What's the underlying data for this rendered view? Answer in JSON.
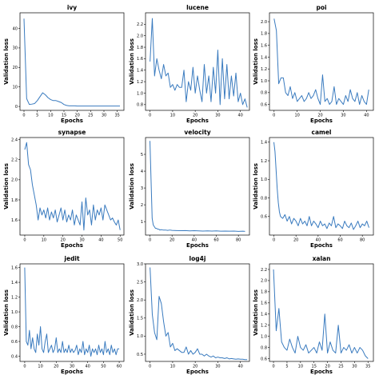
{
  "chart_data": [
    {
      "type": "line",
      "title": "ivy",
      "xlabel": "Epochs",
      "ylabel": "Validation loss",
      "xlim": [
        -1.5,
        37.5
      ],
      "ylim": [
        -2,
        48
      ],
      "xticks": [
        0,
        5,
        10,
        15,
        20,
        25,
        30,
        35
      ],
      "yticks": [
        0,
        10,
        20,
        30,
        40
      ],
      "x": [
        0,
        1,
        2,
        3,
        4,
        5,
        6,
        7,
        8,
        9,
        10,
        11,
        12,
        13,
        14,
        15,
        16,
        17,
        18,
        19,
        20,
        21,
        22,
        23,
        24,
        25,
        26,
        27,
        28,
        29,
        30,
        31,
        32,
        33,
        34,
        35,
        36
      ],
      "y": [
        45,
        4,
        1,
        1.2,
        1.5,
        3,
        5,
        7,
        6,
        4.5,
        3.5,
        3,
        3,
        2.5,
        2,
        1,
        0.5,
        0.3,
        0.3,
        0.3,
        0.2,
        0.2,
        0.2,
        0.2,
        0.2,
        0.2,
        0.2,
        0.2,
        0.2,
        0.2,
        0.2,
        0.2,
        0.2,
        0.2,
        0.2,
        0.2,
        0.2
      ]
    },
    {
      "type": "line",
      "title": "lucene",
      "xlabel": "Epochs",
      "ylabel": "Validation loss",
      "xlim": [
        -2,
        44
      ],
      "ylim": [
        0.7,
        2.4
      ],
      "xticks": [
        0,
        10,
        20,
        30,
        40
      ],
      "yticks": [
        0.8,
        1.0,
        1.2,
        1.4,
        1.6,
        1.8,
        2.0,
        2.2
      ],
      "x": [
        0,
        1,
        2,
        3,
        4,
        5,
        6,
        7,
        8,
        9,
        10,
        11,
        12,
        13,
        14,
        15,
        16,
        17,
        18,
        19,
        20,
        21,
        22,
        23,
        24,
        25,
        26,
        27,
        28,
        29,
        30,
        31,
        32,
        33,
        34,
        35,
        36,
        37,
        38,
        39,
        40,
        41,
        42,
        43
      ],
      "y": [
        1.55,
        2.3,
        1.3,
        1.6,
        1.4,
        1.25,
        1.5,
        1.3,
        1.35,
        1.1,
        1.15,
        1.05,
        1.15,
        1.1,
        1.1,
        1.4,
        0.85,
        1.2,
        1.05,
        1.45,
        1.0,
        1.3,
        1.05,
        0.85,
        1.5,
        1.0,
        1.3,
        0.85,
        1.45,
        1.0,
        1.75,
        0.8,
        1.6,
        0.9,
        1.5,
        0.9,
        1.3,
        0.95,
        1.35,
        0.85,
        1.0,
        0.8,
        0.9,
        0.75
      ]
    },
    {
      "type": "line",
      "title": "poi",
      "xlabel": "Epochs",
      "ylabel": "Validation loss",
      "xlim": [
        -2,
        43
      ],
      "ylim": [
        0.5,
        2.15
      ],
      "xticks": [
        0,
        10,
        20,
        30,
        40
      ],
      "yticks": [
        0.6,
        0.8,
        1.0,
        1.2,
        1.4,
        1.6,
        1.8,
        2.0
      ],
      "x": [
        0,
        1,
        2,
        3,
        4,
        5,
        6,
        7,
        8,
        9,
        10,
        11,
        12,
        13,
        14,
        15,
        16,
        17,
        18,
        19,
        20,
        21,
        22,
        23,
        24,
        25,
        26,
        27,
        28,
        29,
        30,
        31,
        32,
        33,
        34,
        35,
        36,
        37,
        38,
        39,
        40,
        41
      ],
      "y": [
        2.05,
        1.85,
        0.95,
        1.05,
        1.05,
        0.8,
        0.75,
        0.9,
        0.7,
        0.8,
        0.65,
        0.7,
        0.75,
        0.65,
        0.7,
        0.8,
        0.7,
        0.75,
        0.85,
        0.7,
        0.6,
        1.1,
        0.65,
        0.7,
        0.6,
        0.65,
        0.9,
        0.6,
        0.7,
        0.65,
        0.6,
        0.75,
        0.65,
        0.85,
        0.7,
        0.65,
        0.8,
        0.6,
        0.75,
        0.65,
        0.6,
        0.85
      ]
    },
    {
      "type": "line",
      "title": "synapse",
      "xlabel": "Epochs",
      "ylabel": "Validation loss",
      "xlim": [
        -2.5,
        52
      ],
      "ylim": [
        1.45,
        2.42
      ],
      "xticks": [
        0,
        10,
        20,
        30,
        40,
        50
      ],
      "yticks": [
        1.6,
        1.8,
        2.0,
        2.2,
        2.4
      ],
      "x": [
        0,
        1,
        2,
        3,
        4,
        5,
        6,
        7,
        8,
        9,
        10,
        11,
        12,
        13,
        14,
        15,
        16,
        17,
        18,
        19,
        20,
        21,
        22,
        23,
        24,
        25,
        26,
        27,
        28,
        29,
        30,
        31,
        32,
        33,
        34,
        35,
        36,
        37,
        38,
        39,
        40,
        41,
        42,
        43,
        44,
        45,
        46,
        47,
        48,
        49,
        50
      ],
      "y": [
        2.3,
        2.37,
        2.15,
        2.1,
        1.95,
        1.85,
        1.75,
        1.6,
        1.72,
        1.65,
        1.7,
        1.62,
        1.72,
        1.6,
        1.68,
        1.62,
        1.7,
        1.58,
        1.65,
        1.72,
        1.6,
        1.7,
        1.58,
        1.65,
        1.6,
        1.7,
        1.55,
        1.65,
        1.6,
        1.55,
        1.78,
        1.5,
        1.82,
        1.65,
        1.7,
        1.55,
        1.75,
        1.6,
        1.7,
        1.65,
        1.72,
        1.6,
        1.75,
        1.7,
        1.65,
        1.6,
        1.62,
        1.58,
        1.55,
        1.6,
        1.5
      ]
    },
    {
      "type": "line",
      "title": "velocity",
      "xlabel": "Epochs",
      "ylabel": "Validation loss",
      "xlim": [
        -4,
        90
      ],
      "ylim": [
        0.2,
        6.0
      ],
      "xticks": [
        0,
        20,
        40,
        60,
        80
      ],
      "yticks": [
        1,
        2,
        3,
        4,
        5
      ],
      "x": [
        0,
        1,
        2,
        3,
        4,
        5,
        6,
        7,
        8,
        9,
        10,
        12,
        14,
        16,
        18,
        20,
        24,
        28,
        32,
        36,
        40,
        44,
        48,
        52,
        56,
        60,
        64,
        68,
        72,
        76,
        80,
        84,
        86
      ],
      "y": [
        5.8,
        3.5,
        1.2,
        0.8,
        0.7,
        0.6,
        0.6,
        0.55,
        0.55,
        0.5,
        0.52,
        0.5,
        0.5,
        0.48,
        0.5,
        0.48,
        0.47,
        0.46,
        0.47,
        0.45,
        0.46,
        0.45,
        0.44,
        0.45,
        0.44,
        0.45,
        0.43,
        0.44,
        0.43,
        0.44,
        0.42,
        0.43,
        0.42
      ]
    },
    {
      "type": "line",
      "title": "camel",
      "xlabel": "Epochs",
      "ylabel": "Validation loss",
      "xlim": [
        -4,
        90
      ],
      "ylim": [
        0.4,
        1.45
      ],
      "xticks": [
        0,
        20,
        40,
        60,
        80
      ],
      "yticks": [
        0.6,
        0.8,
        1.0,
        1.2,
        1.4
      ],
      "x": [
        0,
        1,
        2,
        3,
        4,
        5,
        6,
        8,
        10,
        12,
        14,
        16,
        18,
        20,
        22,
        24,
        26,
        28,
        30,
        32,
        34,
        36,
        38,
        40,
        42,
        44,
        46,
        48,
        50,
        52,
        54,
        56,
        58,
        60,
        62,
        64,
        66,
        68,
        70,
        72,
        74,
        76,
        78,
        80,
        82,
        84,
        86
      ],
      "y": [
        1.4,
        1.3,
        1.1,
        0.9,
        0.75,
        0.65,
        0.6,
        0.58,
        0.62,
        0.55,
        0.6,
        0.52,
        0.58,
        0.55,
        0.5,
        0.58,
        0.52,
        0.55,
        0.5,
        0.6,
        0.5,
        0.55,
        0.52,
        0.48,
        0.55,
        0.5,
        0.52,
        0.47,
        0.53,
        0.5,
        0.6,
        0.48,
        0.52,
        0.5,
        0.47,
        0.55,
        0.5,
        0.48,
        0.53,
        0.46,
        0.5,
        0.55,
        0.48,
        0.52,
        0.5,
        0.55,
        0.48
      ]
    },
    {
      "type": "line",
      "title": "jedit",
      "xlabel": "Epochs",
      "ylabel": "Validation loss",
      "xlim": [
        -3,
        63
      ],
      "ylim": [
        0.33,
        1.65
      ],
      "xticks": [
        0,
        10,
        20,
        30,
        40,
        50,
        60
      ],
      "yticks": [
        0.4,
        0.6,
        0.8,
        1.0,
        1.2,
        1.4,
        1.6
      ],
      "x": [
        0,
        1,
        2,
        3,
        4,
        5,
        6,
        7,
        8,
        9,
        10,
        11,
        12,
        13,
        14,
        15,
        16,
        17,
        18,
        19,
        20,
        21,
        22,
        23,
        24,
        25,
        26,
        27,
        28,
        29,
        30,
        31,
        32,
        33,
        34,
        35,
        36,
        37,
        38,
        39,
        40,
        41,
        42,
        43,
        44,
        45,
        46,
        47,
        48,
        49,
        50,
        51,
        52,
        53,
        54,
        55,
        56,
        57,
        58,
        59,
        60
      ],
      "y": [
        1.6,
        0.6,
        0.55,
        0.75,
        0.5,
        0.65,
        0.5,
        0.45,
        0.7,
        0.55,
        0.8,
        0.5,
        0.45,
        0.6,
        0.7,
        0.45,
        0.5,
        0.55,
        0.45,
        0.5,
        0.65,
        0.45,
        0.5,
        0.45,
        0.6,
        0.45,
        0.5,
        0.45,
        0.55,
        0.45,
        0.5,
        0.45,
        0.48,
        0.55,
        0.42,
        0.5,
        0.45,
        0.6,
        0.42,
        0.5,
        0.45,
        0.55,
        0.4,
        0.5,
        0.45,
        0.5,
        0.42,
        0.55,
        0.45,
        0.5,
        0.42,
        0.6,
        0.45,
        0.5,
        0.42,
        0.55,
        0.45,
        0.5,
        0.42,
        0.5,
        0.5
      ]
    },
    {
      "type": "line",
      "title": "log4j",
      "xlabel": "Epochs",
      "ylabel": "Validation loss",
      "xlim": [
        -2,
        44
      ],
      "ylim": [
        0.3,
        3.0
      ],
      "xticks": [
        0,
        10,
        20,
        30,
        40
      ],
      "yticks": [
        0.5,
        1.0,
        1.5,
        2.0,
        2.5,
        3.0
      ],
      "x": [
        0,
        1,
        2,
        3,
        4,
        5,
        6,
        7,
        8,
        9,
        10,
        11,
        12,
        13,
        14,
        15,
        16,
        17,
        18,
        19,
        20,
        21,
        22,
        23,
        24,
        25,
        26,
        27,
        28,
        29,
        30,
        31,
        32,
        33,
        34,
        35,
        36,
        37,
        38,
        39,
        40,
        41,
        42,
        43
      ],
      "y": [
        2.9,
        1.6,
        1.1,
        0.9,
        2.1,
        1.9,
        1.4,
        1.0,
        1.1,
        0.7,
        0.8,
        0.6,
        0.65,
        0.6,
        0.55,
        0.55,
        0.7,
        0.5,
        0.6,
        0.5,
        0.55,
        0.65,
        0.5,
        0.5,
        0.45,
        0.5,
        0.45,
        0.42,
        0.45,
        0.4,
        0.42,
        0.4,
        0.4,
        0.38,
        0.4,
        0.37,
        0.38,
        0.37,
        0.36,
        0.37,
        0.36,
        0.36,
        0.35,
        0.35
      ]
    },
    {
      "type": "line",
      "title": "xalan",
      "xlabel": "Epochs",
      "ylabel": "Validation loss",
      "xlim": [
        -1.5,
        37
      ],
      "ylim": [
        0.55,
        2.3
      ],
      "xticks": [
        0,
        5,
        10,
        15,
        20,
        25,
        30,
        35
      ],
      "yticks": [
        0.6,
        0.8,
        1.0,
        1.2,
        1.4,
        1.6,
        1.8,
        2.0,
        2.2
      ],
      "x": [
        0,
        1,
        2,
        3,
        4,
        5,
        6,
        7,
        8,
        9,
        10,
        11,
        12,
        13,
        14,
        15,
        16,
        17,
        18,
        19,
        20,
        21,
        22,
        23,
        24,
        25,
        26,
        27,
        28,
        29,
        30,
        31,
        32,
        33,
        34,
        35
      ],
      "y": [
        2.2,
        1.1,
        1.5,
        0.9,
        0.8,
        0.75,
        0.95,
        0.8,
        0.7,
        1.0,
        0.8,
        0.75,
        0.85,
        0.7,
        0.75,
        0.8,
        0.7,
        0.9,
        0.75,
        1.4,
        0.7,
        0.9,
        0.75,
        0.7,
        1.2,
        0.7,
        0.8,
        0.75,
        0.85,
        0.7,
        0.8,
        0.7,
        0.8,
        0.75,
        0.65,
        0.6
      ]
    }
  ]
}
